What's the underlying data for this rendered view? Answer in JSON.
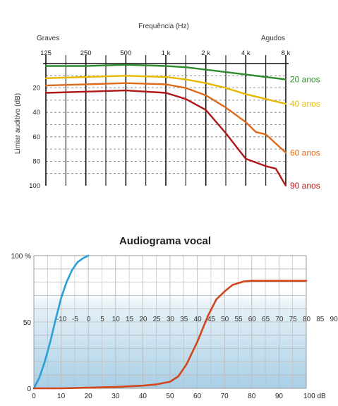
{
  "chart_data": [
    {
      "type": "line",
      "title": "Frequência (Hz)",
      "xlabel_left": "Graves",
      "xlabel_right": "Agudos",
      "ylabel": "Limiar auditivo (dB)",
      "x_scale": "log",
      "xticks": [
        125,
        250,
        500,
        1000,
        2000,
        4000,
        8000
      ],
      "xtick_labels": [
        "125",
        "250",
        "500",
        "1 k",
        "2 k",
        "4 k",
        "8 k"
      ],
      "y_inverted": true,
      "ylim": [
        0,
        100
      ],
      "yticks": [
        20,
        40,
        60,
        80,
        100
      ],
      "ytick_labels": [
        "20",
        "40",
        "60",
        "80",
        "100"
      ],
      "grid": true,
      "legend_placement": "right-of-lines",
      "series": [
        {
          "name": "20 anos",
          "color": "#2e8b2e",
          "x": [
            125,
            250,
            500,
            1000,
            1414,
            2000,
            2828,
            4000,
            5657,
            8000
          ],
          "y": [
            2,
            2,
            1,
            2,
            3,
            5,
            7,
            9,
            11,
            13
          ]
        },
        {
          "name": "40 anos",
          "color": "#e6b800",
          "x": [
            125,
            250,
            500,
            1000,
            1414,
            2000,
            2828,
            4000,
            5657,
            8000
          ],
          "y": [
            12,
            11,
            10,
            11,
            13,
            16,
            20,
            25,
            29,
            33
          ]
        },
        {
          "name": "60 anos",
          "color": "#e06a1a",
          "x": [
            125,
            250,
            500,
            1000,
            1414,
            2000,
            2828,
            4000,
            4757,
            5657,
            8000
          ],
          "y": [
            18,
            17,
            16,
            17,
            20,
            26,
            36,
            48,
            56,
            58,
            73
          ]
        },
        {
          "name": "90 anos",
          "color": "#b01818",
          "x": [
            125,
            250,
            500,
            1000,
            1414,
            2000,
            2828,
            4000,
            5657,
            6727,
            8000
          ],
          "y": [
            24,
            23,
            22,
            24,
            29,
            38,
            57,
            78,
            84,
            86,
            100
          ]
        }
      ]
    },
    {
      "type": "line",
      "title": "Audiograma vocal",
      "xlim": [
        0,
        100
      ],
      "ylim": [
        0,
        100
      ],
      "xticks": [
        0,
        10,
        20,
        30,
        40,
        50,
        60,
        70,
        80,
        90,
        100
      ],
      "xtick_labels": [
        "0",
        "10",
        "20",
        "30",
        "40",
        "50",
        "60",
        "70",
        "80",
        "90",
        "100 dB"
      ],
      "yticks": [
        0,
        50,
        100
      ],
      "ytick_labels": [
        "0",
        "50",
        "100 %"
      ],
      "band_scale_labels": [
        "-10",
        "-5",
        "0",
        "5",
        "10",
        "15",
        "20",
        "25",
        "30",
        "35",
        "40",
        "45",
        "50",
        "55",
        "60",
        "65",
        "70",
        "75",
        "80",
        "85",
        "90"
      ],
      "grid": true,
      "series": [
        {
          "color": "#2a9fd8",
          "x": [
            0,
            2,
            4,
            6,
            8,
            10,
            12,
            14,
            16,
            18,
            20
          ],
          "y": [
            0,
            8,
            20,
            35,
            52,
            68,
            80,
            89,
            95,
            98,
            100
          ]
        },
        {
          "color": "#d2461b",
          "x": [
            0,
            10,
            20,
            30,
            40,
            45,
            50,
            53,
            56,
            60,
            64,
            67,
            70,
            73,
            77,
            80,
            85,
            90,
            95,
            100
          ],
          "y": [
            0,
            0,
            0.5,
            1,
            2,
            3,
            5,
            9,
            18,
            35,
            55,
            67,
            73,
            78,
            80.5,
            81,
            81,
            81,
            81,
            81
          ]
        }
      ]
    }
  ]
}
